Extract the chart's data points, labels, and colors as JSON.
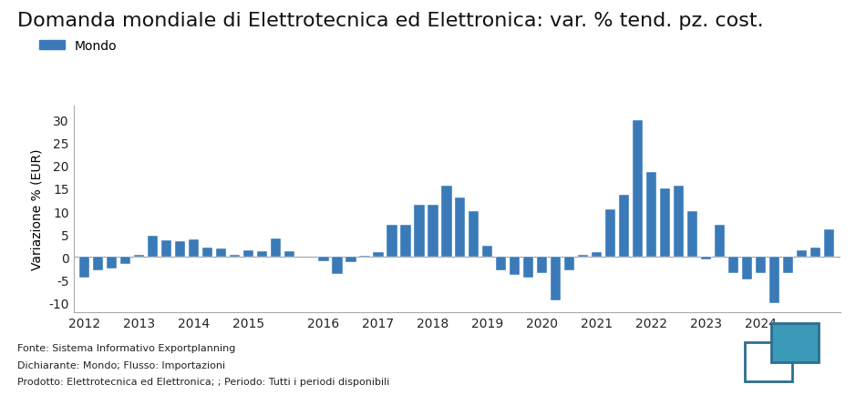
{
  "title": "Domanda mondiale di Elettrotecnica ed Elettronica: var. % tend. pz. cost.",
  "ylabel": "Variazione % (EUR)",
  "bar_color": "#3a7ab8",
  "legend_label": "Mondo",
  "footnote_lines": [
    "Fonte: Sistema Informativo Exportplanning",
    "Dichiarante: Mondo; Flusso: Importazioni",
    "Prodotto: Elettrotecnica ed Elettronica; ; Periodo: Tutti i periodi disponibili"
  ],
  "values": [
    -4.5,
    -3.0,
    -2.5,
    -1.5,
    0.5,
    4.7,
    3.7,
    3.5,
    3.8,
    2.0,
    1.8,
    0.5,
    1.5,
    1.3,
    4.0,
    1.2,
    -1.0,
    -3.8,
    -1.2,
    0.3,
    1.0,
    7.0,
    7.0,
    11.5,
    11.5,
    15.5,
    13.0,
    10.0,
    2.5,
    -3.0,
    -4.0,
    -4.5,
    -3.5,
    -9.5,
    -3.0,
    0.5,
    1.0,
    10.5,
    13.5,
    30.0,
    18.5,
    15.0,
    15.5,
    10.0,
    -0.5,
    7.0,
    -3.5,
    -5.0,
    -3.5,
    -10.0,
    -3.5,
    1.5,
    2.0,
    6.0
  ],
  "xtick_labels": [
    "2012",
    "2013",
    "2014",
    "2015",
    "2016",
    "2017",
    "2018",
    "2019",
    "2020",
    "2021",
    "2022",
    "2023",
    "2024"
  ],
  "ylim": [
    -12,
    33
  ],
  "yticks": [
    -10,
    -5,
    0,
    5,
    10,
    15,
    20,
    25,
    30
  ],
  "background_color": "#ffffff",
  "title_fontsize": 16,
  "axis_fontsize": 10,
  "tick_fontsize": 10,
  "logo_color1": "#2e6e8e",
  "logo_color2": "#3a9ab8"
}
